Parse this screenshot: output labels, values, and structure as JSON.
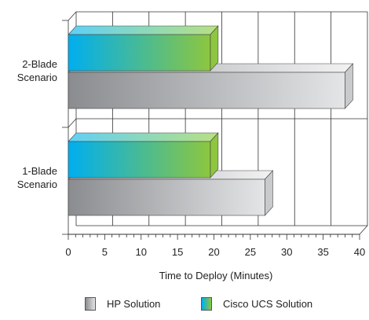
{
  "chart_data": {
    "type": "bar",
    "orientation": "horizontal",
    "style": "3d",
    "categories": [
      "2-Blade\nScenario",
      "1-Blade\nScenario"
    ],
    "series": [
      {
        "name": "Cisco UCS Solution",
        "values": [
          19.5,
          19.5
        ],
        "color_start": "#00aeef",
        "color_end": "#8dc63f"
      },
      {
        "name": "HP Solution",
        "values": [
          38,
          27
        ],
        "color_start": "#8a8c8f",
        "color_end": "#e4e5e7"
      }
    ],
    "xlabel": "Time to Deploy (Minutes)",
    "ylabel": "",
    "xlim": [
      0,
      40
    ],
    "x_ticks": [
      0,
      5,
      10,
      15,
      20,
      25,
      30,
      35,
      40
    ],
    "grid": true,
    "legend_position": "bottom",
    "legend_order": [
      "HP Solution",
      "Cisco UCS Solution"
    ]
  }
}
